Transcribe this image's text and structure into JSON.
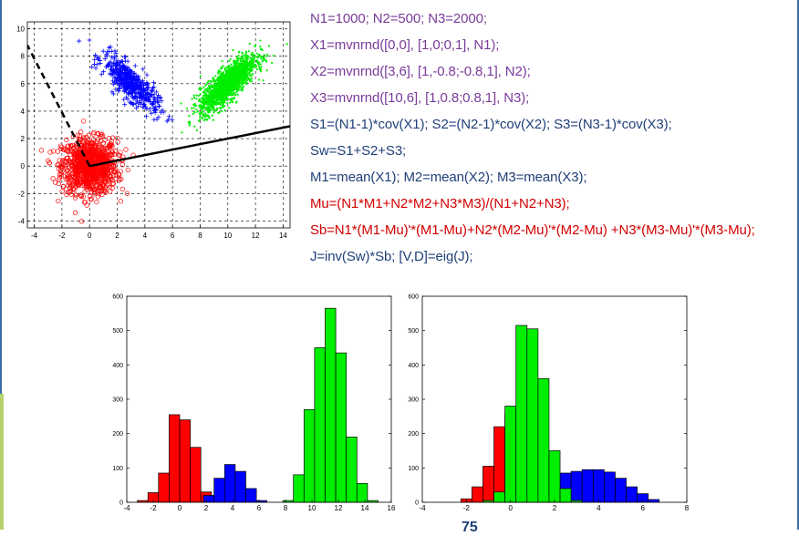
{
  "code_lines": [
    {
      "text": "N1=1000; N2=500; N3=2000;",
      "color": "purple"
    },
    {
      "text": "X1=mvnrnd([0,0], [1,0;0,1], N1);",
      "color": "purple"
    },
    {
      "text": "X2=mvnrnd([3,6], [1,-0.8;-0.8,1], N2);",
      "color": "purple"
    },
    {
      "text": "X3=mvnrnd([10,6], [1,0.8;0.8,1], N3);",
      "color": "purple"
    },
    {
      "text": "S1=(N1-1)*cov(X1); S2=(N2-1)*cov(X2); S3=(N3-1)*cov(X3);",
      "color": "blue"
    },
    {
      "text": "Sw=S1+S2+S3;",
      "color": "blue"
    },
    {
      "text": "M1=mean(X1); M2=mean(X2); M3=mean(X3);",
      "color": "blue"
    },
    {
      "text": "Mu=(N1*M1+N2*M2+N3*M3)/(N1+N2+N3);",
      "color": "red"
    },
    {
      "text": "Sb=N1*(M1-Mu)'*(M1-Mu)+N2*(M2-Mu)'*(M2-Mu) +N3*(M3-Mu)'*(M3-Mu);",
      "color": "red"
    },
    {
      "text": "J=inv(Sw)*Sb;  [V,D]=eig(J);",
      "color": "blue"
    }
  ],
  "page_number": "75",
  "colors": {
    "red": "#ff0000",
    "blue": "#0000ff",
    "green": "#00ee00"
  },
  "chart_data": [
    {
      "type": "scatter",
      "xlim": [
        -4.5,
        14.5
      ],
      "ylim": [
        -4.5,
        10.5
      ],
      "xticks": [
        -4,
        -2,
        0,
        2,
        4,
        6,
        8,
        10,
        12,
        14
      ],
      "yticks": [
        -4,
        -2,
        0,
        2,
        4,
        6,
        8,
        10
      ],
      "grid": true,
      "series": [
        {
          "marker": "o",
          "color": "#ff0000",
          "n": 1000,
          "mean": [
            0,
            0
          ],
          "cov": [
            [
              1,
              0
            ],
            [
              0,
              1
            ]
          ]
        },
        {
          "marker": "+",
          "color": "#0000ff",
          "n": 500,
          "mean": [
            3,
            6
          ],
          "cov": [
            [
              1,
              -0.8
            ],
            [
              -0.8,
              1
            ]
          ]
        },
        {
          "marker": ".",
          "color": "#00ee00",
          "n": 2000,
          "mean": [
            10,
            6
          ],
          "cov": [
            [
              1,
              0.8
            ],
            [
              0.8,
              1
            ]
          ]
        }
      ],
      "projection_lines": [
        {
          "style": "solid",
          "from": [
            0,
            0
          ],
          "to": [
            14.5,
            2.9
          ]
        },
        {
          "style": "dashed",
          "from": [
            0,
            0
          ],
          "to": [
            -4.5,
            8.8
          ]
        }
      ]
    },
    {
      "type": "bar",
      "xlim": [
        -4,
        16
      ],
      "ylim": [
        0,
        600
      ],
      "xticks": [
        -4,
        -2,
        0,
        2,
        4,
        6,
        8,
        10,
        12,
        14,
        16
      ],
      "yticks": [
        0,
        100,
        200,
        300,
        400,
        500,
        600
      ],
      "bin_width": 0.8,
      "series": [
        {
          "color": "#ff0000",
          "bins": [
            [
              -2.8,
              5
            ],
            [
              -2.0,
              28
            ],
            [
              -1.2,
              85
            ],
            [
              -0.4,
              255
            ],
            [
              0.4,
              240
            ],
            [
              1.2,
              160
            ],
            [
              2.0,
              30
            ]
          ]
        },
        {
          "color": "#0000ff",
          "bins": [
            [
              2.2,
              20
            ],
            [
              3.0,
              70
            ],
            [
              3.8,
              110
            ],
            [
              4.6,
              90
            ],
            [
              5.4,
              40
            ],
            [
              6.2,
              5
            ]
          ]
        },
        {
          "color": "#00ee00",
          "bins": [
            [
              8.2,
              5
            ],
            [
              9.0,
              80
            ],
            [
              9.8,
              270
            ],
            [
              10.6,
              450
            ],
            [
              11.4,
              565
            ],
            [
              12.2,
              435
            ],
            [
              13.0,
              190
            ],
            [
              13.8,
              55
            ],
            [
              14.6,
              5
            ]
          ]
        }
      ]
    },
    {
      "type": "bar",
      "xlim": [
        -4,
        8
      ],
      "ylim": [
        0,
        600
      ],
      "xticks": [
        -4,
        -2,
        0,
        2,
        4,
        6,
        8
      ],
      "yticks": [
        0,
        100,
        200,
        300,
        400,
        500,
        600
      ],
      "bin_width": 0.5,
      "series": [
        {
          "color": "#ff0000",
          "bins": [
            [
              -2.0,
              10
            ],
            [
              -1.5,
              45
            ],
            [
              -1.0,
              105
            ],
            [
              -0.5,
              220
            ],
            [
              0.0,
              255
            ],
            [
              0.5,
              215
            ],
            [
              1.0,
              100
            ],
            [
              1.5,
              30
            ]
          ]
        },
        {
          "color": "#0000ff",
          "bins": [
            [
              1.0,
              12
            ],
            [
              1.5,
              18
            ],
            [
              2.0,
              55
            ],
            [
              2.5,
              85
            ],
            [
              3.0,
              90
            ],
            [
              3.5,
              95
            ],
            [
              4.0,
              95
            ],
            [
              4.5,
              88
            ],
            [
              5.0,
              70
            ],
            [
              5.5,
              45
            ],
            [
              6.0,
              25
            ],
            [
              6.5,
              8
            ]
          ]
        },
        {
          "color": "#00ee00",
          "bins": [
            [
              -1.0,
              5
            ],
            [
              -0.5,
              30
            ],
            [
              0.0,
              280
            ],
            [
              0.5,
              515
            ],
            [
              1.0,
              505
            ],
            [
              1.5,
              360
            ],
            [
              2.0,
              150
            ],
            [
              2.5,
              40
            ],
            [
              3.0,
              5
            ]
          ]
        }
      ]
    }
  ]
}
